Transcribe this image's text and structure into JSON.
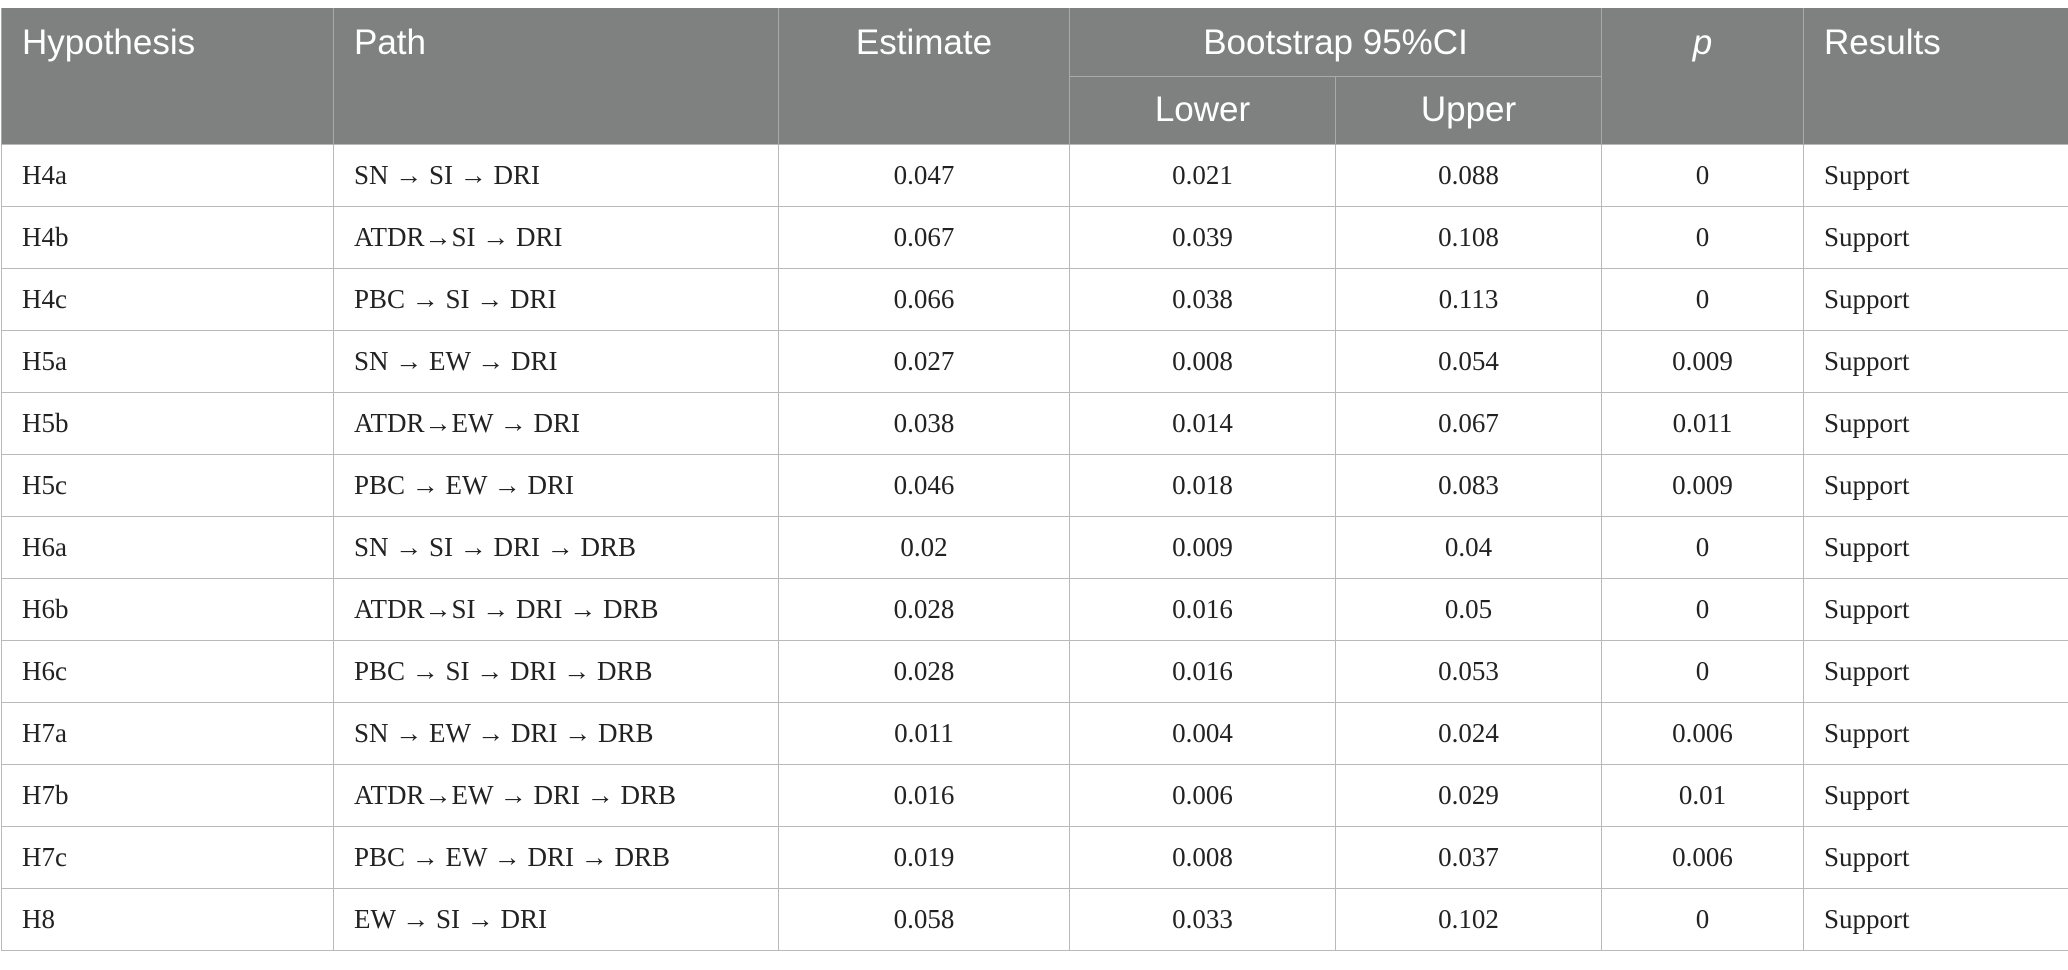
{
  "header": {
    "hypothesis": "Hypothesis",
    "path": "Path",
    "estimate": "Estimate",
    "bootstrap": "Bootstrap 95%CI",
    "lower": "Lower",
    "upper": "Upper",
    "p": "p",
    "results": "Results"
  },
  "rows": [
    {
      "hypothesis": "H4a",
      "path": "SN → SI → DRI",
      "estimate": "0.047",
      "lower": "0.021",
      "upper": "0.088",
      "p": "0",
      "result": "Support"
    },
    {
      "hypothesis": "H4b",
      "path": "ATDR→SI → DRI",
      "estimate": "0.067",
      "lower": "0.039",
      "upper": "0.108",
      "p": "0",
      "result": "Support"
    },
    {
      "hypothesis": "H4c",
      "path": "PBC → SI → DRI",
      "estimate": "0.066",
      "lower": "0.038",
      "upper": "0.113",
      "p": "0",
      "result": "Support"
    },
    {
      "hypothesis": "H5a",
      "path": "SN → EW → DRI",
      "estimate": "0.027",
      "lower": "0.008",
      "upper": "0.054",
      "p": "0.009",
      "result": "Support"
    },
    {
      "hypothesis": "H5b",
      "path": "ATDR→EW → DRI",
      "estimate": "0.038",
      "lower": "0.014",
      "upper": "0.067",
      "p": "0.011",
      "result": "Support"
    },
    {
      "hypothesis": "H5c",
      "path": "PBC → EW → DRI",
      "estimate": "0.046",
      "lower": "0.018",
      "upper": "0.083",
      "p": "0.009",
      "result": "Support"
    },
    {
      "hypothesis": "H6a",
      "path": "SN → SI → DRI → DRB",
      "estimate": "0.02",
      "lower": "0.009",
      "upper": "0.04",
      "p": "0",
      "result": "Support"
    },
    {
      "hypothesis": "H6b",
      "path": "ATDR→SI → DRI → DRB",
      "estimate": "0.028",
      "lower": "0.016",
      "upper": "0.05",
      "p": "0",
      "result": "Support"
    },
    {
      "hypothesis": "H6c",
      "path": "PBC → SI → DRI → DRB",
      "estimate": "0.028",
      "lower": "0.016",
      "upper": "0.053",
      "p": "0",
      "result": "Support"
    },
    {
      "hypothesis": "H7a",
      "path": "SN → EW → DRI → DRB",
      "estimate": "0.011",
      "lower": "0.004",
      "upper": "0.024",
      "p": "0.006",
      "result": "Support"
    },
    {
      "hypothesis": "H7b",
      "path": "ATDR→EW → DRI → DRB",
      "estimate": "0.016",
      "lower": "0.006",
      "upper": "0.029",
      "p": "0.01",
      "result": "Support"
    },
    {
      "hypothesis": "H7c",
      "path": "PBC → EW → DRI → DRB",
      "estimate": "0.019",
      "lower": "0.008",
      "upper": "0.037",
      "p": "0.006",
      "result": "Support"
    },
    {
      "hypothesis": "H8",
      "path": "EW → SI → DRI",
      "estimate": "0.058",
      "lower": "0.033",
      "upper": "0.102",
      "p": "0",
      "result": "Support"
    }
  ]
}
